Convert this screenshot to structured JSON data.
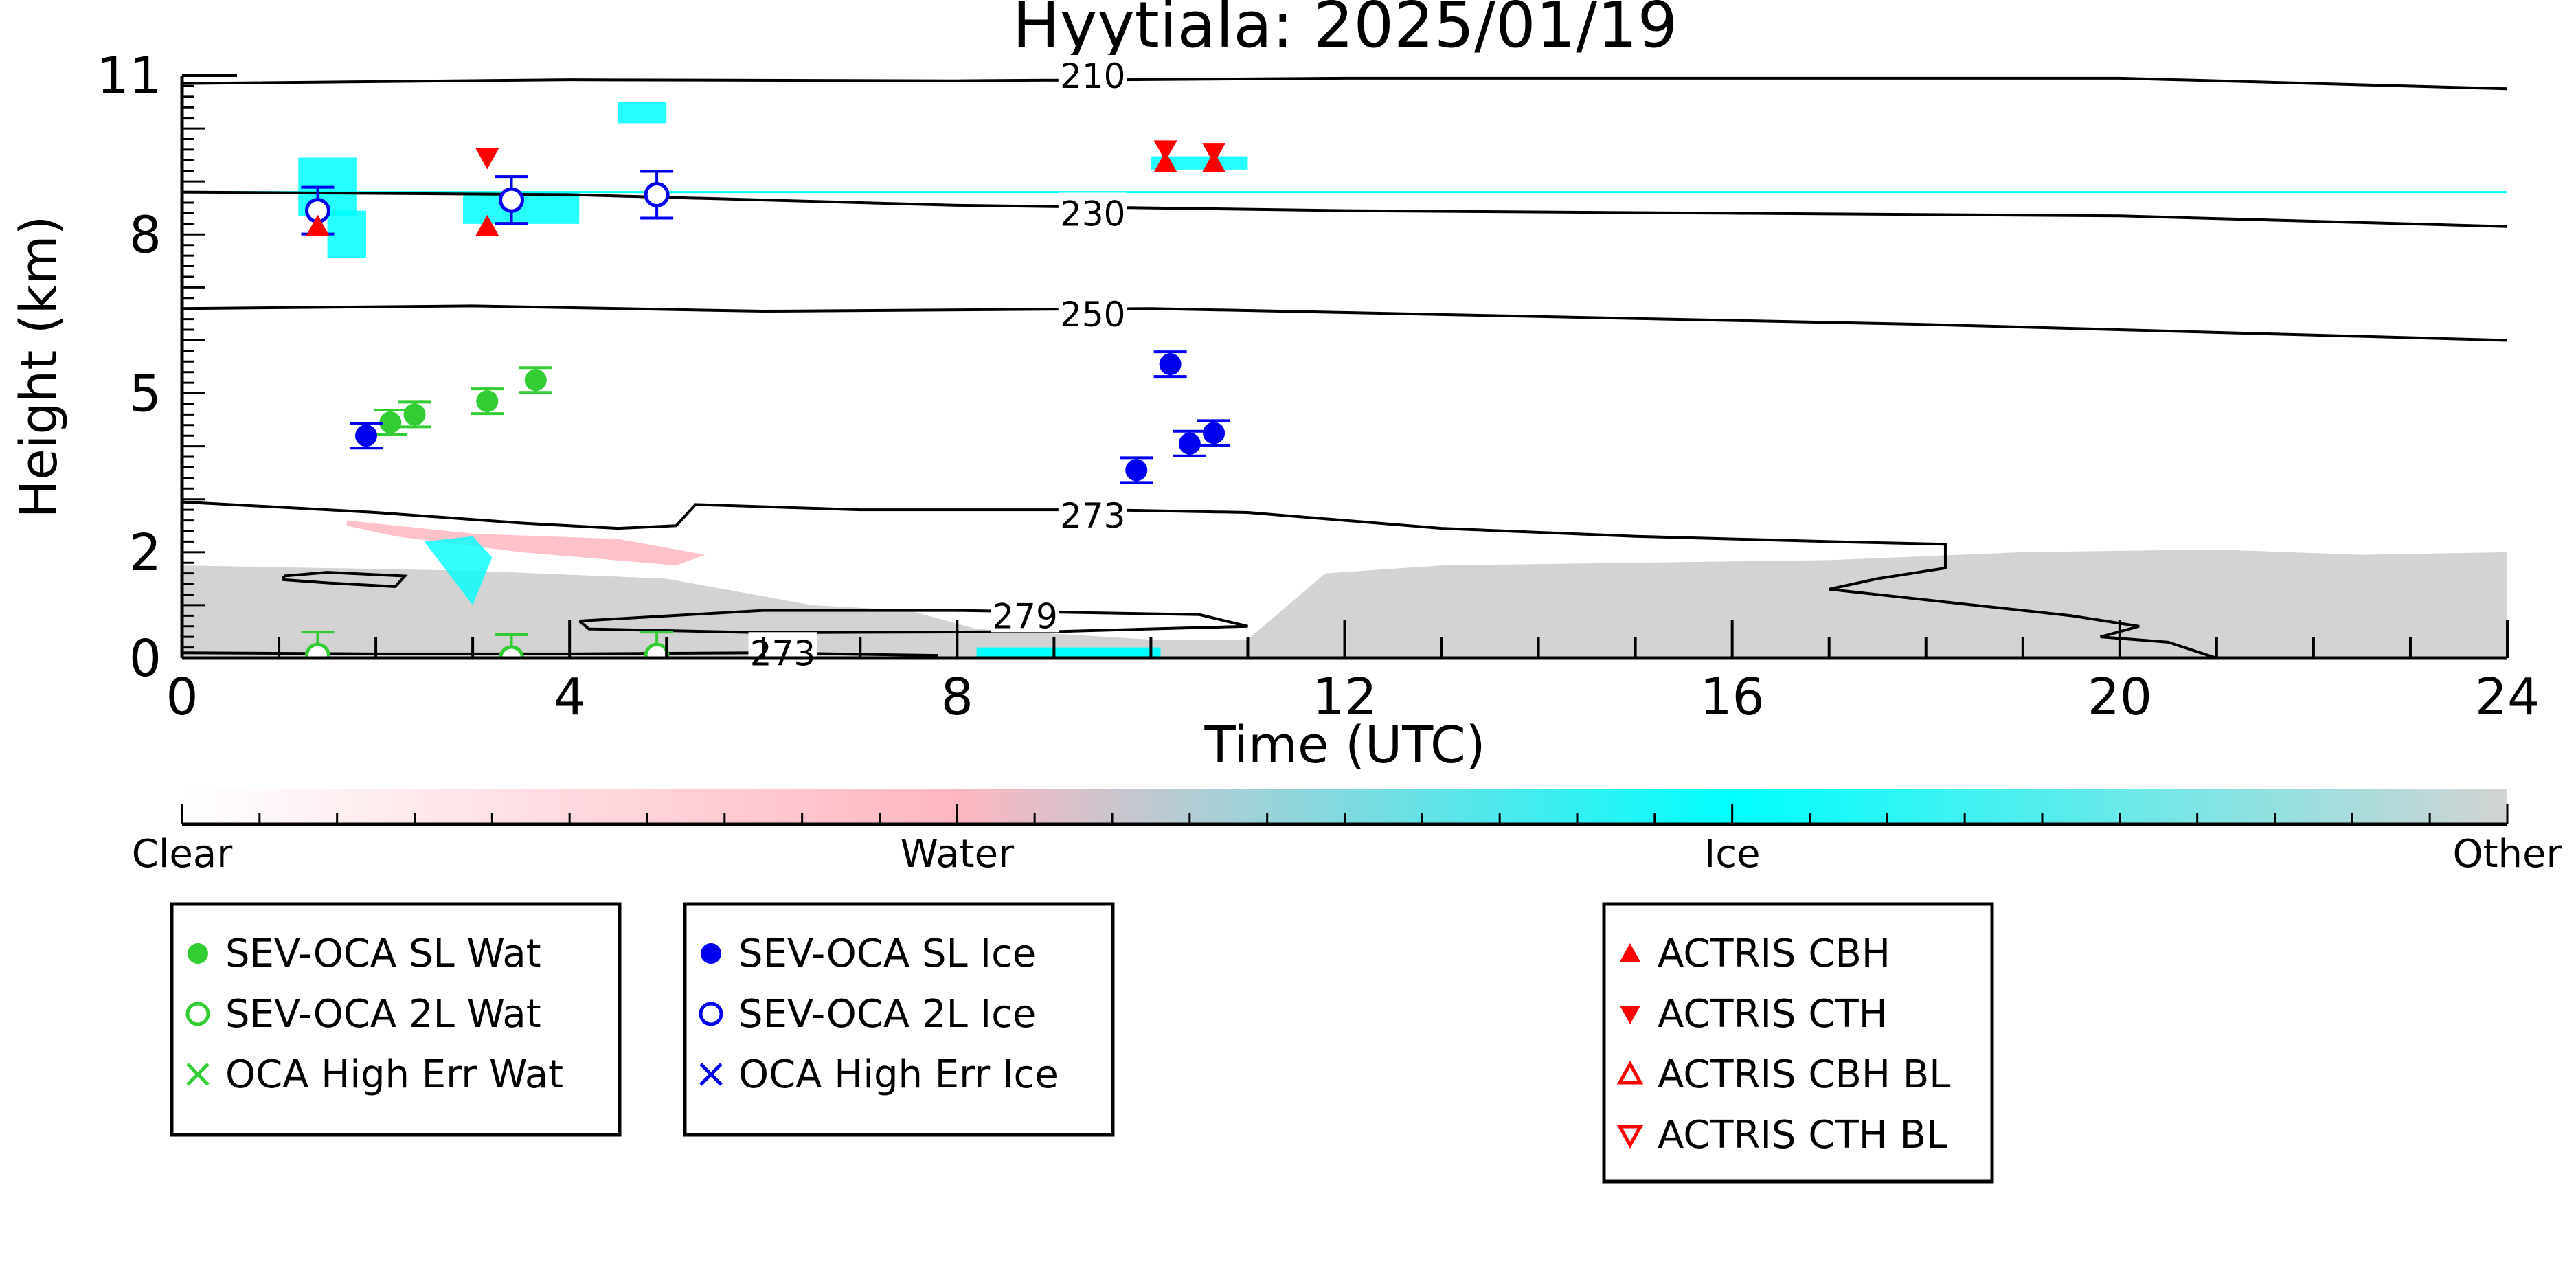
{
  "chart_data": {
    "type": "scatter",
    "title": "Hyytiala: 2025/01/19",
    "xlabel": "Time (UTC)",
    "ylabel": "Height (km)",
    "xlim": [
      0,
      24
    ],
    "ylim": [
      0,
      11
    ],
    "x_ticks": [
      0,
      4,
      8,
      12,
      16,
      20,
      24
    ],
    "x_tick_labels": [
      "0",
      "4",
      "8",
      "12",
      "16",
      "20",
      "24"
    ],
    "y_ticks": [
      0,
      2,
      5,
      8,
      11
    ],
    "y_tick_labels": [
      "0",
      "2",
      "5",
      "8",
      "11"
    ],
    "grid": false,
    "colors": {
      "sl_wat": "#32cd32",
      "sl_ice": "#0000ee",
      "actris": "#ff0000",
      "clear": "#ffffff",
      "water": "#ffb6c1",
      "ice": "#00ffff",
      "other": "#d3d3d3"
    },
    "contour_labels": [
      {
        "text": "210",
        "x": 9.4,
        "y": 11.0
      },
      {
        "text": "230",
        "x": 9.4,
        "y": 8.4
      },
      {
        "text": "250",
        "x": 9.4,
        "y": 6.5
      },
      {
        "text": "273",
        "x": 9.4,
        "y": 2.7
      },
      {
        "text": "279",
        "x": 8.7,
        "y": 0.8
      },
      {
        "text": "273",
        "x": 6.2,
        "y": 0.1
      }
    ],
    "contours": [
      {
        "points": [
          [
            0,
            10.85
          ],
          [
            4,
            10.92
          ],
          [
            8,
            10.9
          ],
          [
            12,
            10.95
          ],
          [
            16,
            10.95
          ],
          [
            20,
            10.95
          ],
          [
            24,
            10.75
          ]
        ]
      },
      {
        "points": [
          [
            0,
            8.8
          ],
          [
            4,
            8.75
          ],
          [
            8,
            8.55
          ],
          [
            12,
            8.45
          ],
          [
            16,
            8.4
          ],
          [
            20,
            8.35
          ],
          [
            24,
            8.15
          ]
        ]
      },
      {
        "points": [
          [
            0,
            6.6
          ],
          [
            3,
            6.65
          ],
          [
            6,
            6.55
          ],
          [
            10,
            6.6
          ],
          [
            14,
            6.45
          ],
          [
            18,
            6.3
          ],
          [
            22,
            6.1
          ],
          [
            24,
            6.0
          ]
        ]
      },
      {
        "points": [
          [
            0,
            2.95
          ],
          [
            1,
            2.85
          ],
          [
            2,
            2.75
          ],
          [
            3.5,
            2.55
          ],
          [
            4.5,
            2.45
          ],
          [
            5.1,
            2.5
          ],
          [
            5.3,
            2.9
          ],
          [
            7,
            2.8
          ],
          [
            9.5,
            2.8
          ],
          [
            11,
            2.75
          ],
          [
            13,
            2.45
          ],
          [
            15,
            2.3
          ],
          [
            17,
            2.2
          ],
          [
            18.2,
            2.15
          ],
          [
            18.2,
            1.7
          ],
          [
            17.5,
            1.5
          ],
          [
            17,
            1.3
          ],
          [
            18,
            1.1
          ],
          [
            19.5,
            0.8
          ],
          [
            20.2,
            0.6
          ],
          [
            19.8,
            0.4
          ],
          [
            20.5,
            0.3
          ],
          [
            21,
            0.0
          ]
        ]
      },
      {
        "points": [
          [
            1.05,
            1.55
          ],
          [
            1.5,
            1.62
          ],
          [
            2.3,
            1.55
          ],
          [
            2.2,
            1.35
          ],
          [
            1.5,
            1.42
          ],
          [
            1.05,
            1.48
          ],
          [
            1.05,
            1.55
          ]
        ]
      },
      {
        "points": [
          [
            4.1,
            0.7
          ],
          [
            6,
            0.9
          ],
          [
            8,
            0.9
          ],
          [
            10.5,
            0.82
          ],
          [
            11,
            0.6
          ],
          [
            9,
            0.5
          ],
          [
            6,
            0.48
          ],
          [
            4.2,
            0.55
          ],
          [
            4.1,
            0.7
          ]
        ]
      },
      {
        "points": [
          [
            0,
            0.1
          ],
          [
            2,
            0.08
          ],
          [
            4,
            0.08
          ],
          [
            6,
            0.1
          ],
          [
            7.8,
            0.05
          ]
        ]
      }
    ],
    "series": [
      {
        "name": "SEV-OCA SL Wat",
        "marker": "filled-circle",
        "color": "#32cd32",
        "points": [
          [
            2.15,
            4.45
          ],
          [
            2.4,
            4.6
          ],
          [
            3.15,
            4.85
          ],
          [
            3.65,
            5.25
          ]
        ]
      },
      {
        "name": "SEV-OCA 2L Wat",
        "marker": "open-circle",
        "color": "#32cd32",
        "points": [
          [
            1.4,
            0.05
          ],
          [
            3.4,
            0.0
          ],
          [
            4.9,
            0.05
          ]
        ]
      },
      {
        "name": "OCA High Err Wat",
        "marker": "x",
        "color": "#32cd32",
        "points": []
      },
      {
        "name": "SEV-OCA SL Ice",
        "marker": "filled-circle",
        "color": "#0000ee",
        "points": [
          [
            1.9,
            4.2
          ],
          [
            9.85,
            3.55
          ],
          [
            10.2,
            5.55
          ],
          [
            10.4,
            4.05
          ],
          [
            10.65,
            4.25
          ]
        ]
      },
      {
        "name": "SEV-OCA 2L Ice",
        "marker": "open-circle",
        "color": "#0000ee",
        "points": [
          [
            1.4,
            8.45
          ],
          [
            3.4,
            8.65
          ],
          [
            4.9,
            8.75
          ]
        ]
      },
      {
        "name": "OCA High Err Ice",
        "marker": "x",
        "color": "#0000ee",
        "points": []
      },
      {
        "name": "ACTRIS CBH",
        "marker": "triangle-up",
        "color": "#ff0000",
        "points": [
          [
            1.4,
            8.15
          ],
          [
            3.15,
            8.15
          ],
          [
            10.15,
            9.35
          ],
          [
            10.65,
            9.35
          ]
        ]
      },
      {
        "name": "ACTRIS CTH",
        "marker": "triangle-down",
        "color": "#ff0000",
        "points": [
          [
            3.15,
            9.45
          ],
          [
            10.15,
            9.6
          ],
          [
            10.65,
            9.55
          ]
        ]
      },
      {
        "name": "ACTRIS CBH BL",
        "marker": "open-triangle-up",
        "color": "#ff0000",
        "points": []
      },
      {
        "name": "ACTRIS CTH BL",
        "marker": "open-triangle-down",
        "color": "#ff0000",
        "points": []
      }
    ],
    "colorbar": {
      "labels": [
        "Clear",
        "Water",
        "Ice",
        "Other"
      ],
      "range": [
        0,
        3
      ]
    },
    "legends": [
      {
        "entries": [
          "SEV-OCA SL Wat",
          "SEV-OCA 2L Wat",
          "OCA High Err Wat"
        ]
      },
      {
        "entries": [
          "SEV-OCA SL Ice",
          "SEV-OCA 2L Ice",
          "OCA High Err Ice"
        ]
      },
      {
        "entries": [
          "ACTRIS CBH",
          "ACTRIS CTH",
          "ACTRIS CBH BL",
          "ACTRIS CTH BL"
        ]
      }
    ]
  }
}
